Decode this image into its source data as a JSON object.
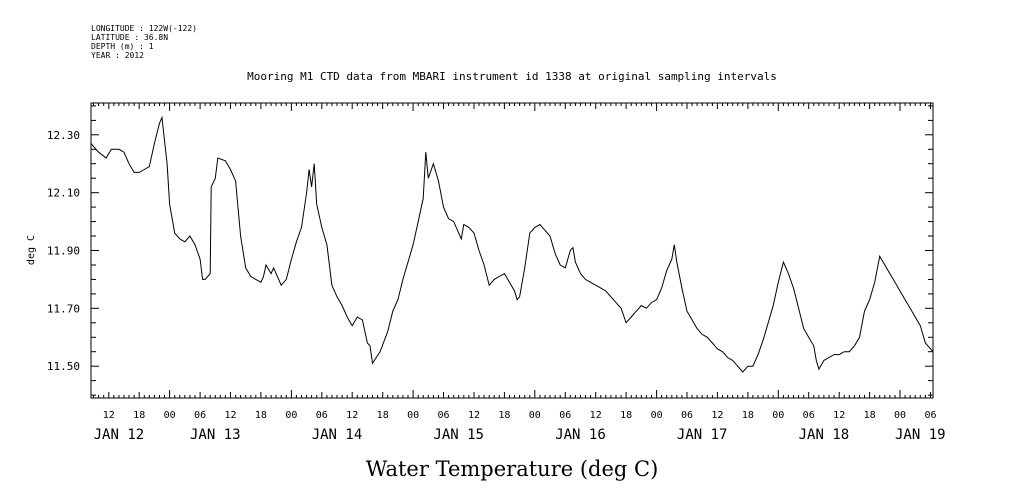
{
  "meta_lines": [
    "LONGITUDE : 122W(-122)",
    "LATITUDE : 36.8N",
    "DEPTH (m) : 1",
    "YEAR : 2012"
  ],
  "chart_data": {
    "type": "line",
    "title": "Mooring M1 CTD data from MBARI instrument id 1338 at original sampling intervals",
    "xlabel": "Water Temperature (deg C)",
    "ylabel": "deg C",
    "x_units": "hours since JAN 12 00:00 (2012)",
    "xlim": [
      8.5,
      174.5
    ],
    "ylim": [
      11.39,
      12.41
    ],
    "yticks": [
      11.5,
      11.7,
      11.9,
      12.1,
      12.3
    ],
    "ytick_labels": [
      "11.50",
      "11.70",
      "11.90",
      "12.10",
      "12.30"
    ],
    "x_hour_ticks": [
      {
        "h": 12,
        "label": "12"
      },
      {
        "h": 18,
        "label": "18"
      },
      {
        "h": 24,
        "label": "00"
      },
      {
        "h": 30,
        "label": "06"
      },
      {
        "h": 36,
        "label": "12"
      },
      {
        "h": 42,
        "label": "18"
      },
      {
        "h": 48,
        "label": "00"
      },
      {
        "h": 54,
        "label": "06"
      },
      {
        "h": 60,
        "label": "12"
      },
      {
        "h": 66,
        "label": "18"
      },
      {
        "h": 72,
        "label": "00"
      },
      {
        "h": 78,
        "label": "06"
      },
      {
        "h": 84,
        "label": "12"
      },
      {
        "h": 90,
        "label": "18"
      },
      {
        "h": 96,
        "label": "00"
      },
      {
        "h": 102,
        "label": "06"
      },
      {
        "h": 108,
        "label": "12"
      },
      {
        "h": 114,
        "label": "18"
      },
      {
        "h": 120,
        "label": "00"
      },
      {
        "h": 126,
        "label": "06"
      },
      {
        "h": 132,
        "label": "12"
      },
      {
        "h": 138,
        "label": "18"
      },
      {
        "h": 144,
        "label": "00"
      },
      {
        "h": 150,
        "label": "06"
      },
      {
        "h": 156,
        "label": "12"
      },
      {
        "h": 162,
        "label": "18"
      },
      {
        "h": 168,
        "label": "00"
      },
      {
        "h": 174,
        "label": "06"
      }
    ],
    "x_day_labels": [
      {
        "h": 14,
        "label": "JAN 12"
      },
      {
        "h": 33,
        "label": "JAN 13"
      },
      {
        "h": 57,
        "label": "JAN 14"
      },
      {
        "h": 81,
        "label": "JAN 15"
      },
      {
        "h": 105,
        "label": "JAN 16"
      },
      {
        "h": 129,
        "label": "JAN 17"
      },
      {
        "h": 153,
        "label": "JAN 18"
      },
      {
        "h": 172,
        "label": "JAN 19"
      }
    ],
    "series": [
      {
        "points": [
          [
            8.5,
            12.27
          ],
          [
            10.0,
            12.24
          ],
          [
            11.5,
            12.22
          ],
          [
            12.5,
            12.25
          ],
          [
            14.0,
            12.25
          ],
          [
            15.0,
            12.24
          ],
          [
            16.0,
            12.2
          ],
          [
            17.0,
            12.17
          ],
          [
            18.0,
            12.17
          ],
          [
            19.0,
            12.18
          ],
          [
            20.0,
            12.19
          ],
          [
            21.0,
            12.27
          ],
          [
            22.0,
            12.34
          ],
          [
            22.5,
            12.36
          ],
          [
            23.0,
            12.28
          ],
          [
            23.5,
            12.2
          ],
          [
            24.0,
            12.06
          ],
          [
            25.0,
            11.96
          ],
          [
            26.0,
            11.94
          ],
          [
            27.0,
            11.93
          ],
          [
            28.0,
            11.95
          ],
          [
            29.0,
            11.92
          ],
          [
            30.0,
            11.87
          ],
          [
            30.5,
            11.8
          ],
          [
            31.0,
            11.8
          ],
          [
            31.5,
            11.81
          ],
          [
            32.0,
            11.82
          ],
          [
            32.2,
            12.12
          ],
          [
            33.0,
            12.15
          ],
          [
            33.5,
            12.22
          ],
          [
            35.0,
            12.21
          ],
          [
            36.0,
            12.18
          ],
          [
            37.0,
            12.14
          ],
          [
            38.0,
            11.95
          ],
          [
            39.0,
            11.84
          ],
          [
            40.0,
            11.81
          ],
          [
            41.0,
            11.8
          ],
          [
            42.0,
            11.79
          ],
          [
            42.5,
            11.81
          ],
          [
            43.0,
            11.85
          ],
          [
            44.0,
            11.82
          ],
          [
            44.5,
            11.84
          ],
          [
            45.0,
            11.82
          ],
          [
            46.0,
            11.78
          ],
          [
            47.0,
            11.8
          ],
          [
            48.0,
            11.87
          ],
          [
            49.0,
            11.93
          ],
          [
            50.0,
            11.98
          ],
          [
            51.0,
            12.1
          ],
          [
            51.5,
            12.18
          ],
          [
            52.0,
            12.12
          ],
          [
            52.5,
            12.2
          ],
          [
            53.0,
            12.06
          ],
          [
            54.0,
            11.98
          ],
          [
            55.0,
            11.92
          ],
          [
            56.0,
            11.78
          ],
          [
            57.0,
            11.74
          ],
          [
            58.0,
            11.71
          ],
          [
            59.0,
            11.67
          ],
          [
            60.0,
            11.64
          ],
          [
            61.0,
            11.67
          ],
          [
            62.0,
            11.66
          ],
          [
            63.0,
            11.58
          ],
          [
            63.5,
            11.57
          ],
          [
            64.0,
            11.51
          ],
          [
            65.5,
            11.55
          ],
          [
            67.0,
            11.62
          ],
          [
            68.0,
            11.69
          ],
          [
            69.0,
            11.73
          ],
          [
            70.0,
            11.8
          ],
          [
            71.0,
            11.86
          ],
          [
            72.0,
            11.92
          ],
          [
            73.0,
            12.0
          ],
          [
            74.0,
            12.08
          ],
          [
            74.5,
            12.24
          ],
          [
            75.0,
            12.15
          ],
          [
            76.0,
            12.2
          ],
          [
            77.0,
            12.14
          ],
          [
            78.0,
            12.05
          ],
          [
            79.0,
            12.01
          ],
          [
            80.0,
            12.0
          ],
          [
            81.0,
            11.96
          ],
          [
            81.5,
            11.94
          ],
          [
            82.0,
            11.99
          ],
          [
            83.0,
            11.98
          ],
          [
            84.0,
            11.96
          ],
          [
            85.0,
            11.9
          ],
          [
            86.0,
            11.85
          ],
          [
            87.0,
            11.78
          ],
          [
            88.0,
            11.8
          ],
          [
            89.0,
            11.81
          ],
          [
            90.0,
            11.82
          ],
          [
            91.0,
            11.79
          ],
          [
            92.0,
            11.76
          ],
          [
            92.5,
            11.73
          ],
          [
            93.0,
            11.74
          ],
          [
            94.0,
            11.84
          ],
          [
            95.0,
            11.96
          ],
          [
            96.0,
            11.98
          ],
          [
            97.0,
            11.99
          ],
          [
            98.0,
            11.97
          ],
          [
            99.0,
            11.95
          ],
          [
            100.0,
            11.89
          ],
          [
            101.0,
            11.85
          ],
          [
            102.0,
            11.84
          ],
          [
            103.0,
            11.9
          ],
          [
            103.5,
            11.91
          ],
          [
            104.0,
            11.86
          ],
          [
            105.0,
            11.82
          ],
          [
            106.0,
            11.8
          ],
          [
            107.0,
            11.79
          ],
          [
            108.0,
            11.78
          ],
          [
            109.0,
            11.77
          ],
          [
            110.0,
            11.76
          ],
          [
            111.0,
            11.74
          ],
          [
            112.0,
            11.72
          ],
          [
            113.0,
            11.7
          ],
          [
            114.0,
            11.65
          ],
          [
            115.0,
            11.67
          ],
          [
            116.0,
            11.69
          ],
          [
            117.0,
            11.71
          ],
          [
            118.0,
            11.7
          ],
          [
            119.0,
            11.72
          ],
          [
            120.0,
            11.73
          ],
          [
            121.0,
            11.77
          ],
          [
            122.0,
            11.83
          ],
          [
            123.0,
            11.87
          ],
          [
            123.5,
            11.92
          ],
          [
            124.0,
            11.86
          ],
          [
            125.0,
            11.77
          ],
          [
            126.0,
            11.69
          ],
          [
            127.0,
            11.66
          ],
          [
            128.0,
            11.63
          ],
          [
            129.0,
            11.61
          ],
          [
            130.0,
            11.6
          ],
          [
            131.0,
            11.58
          ],
          [
            132.0,
            11.56
          ],
          [
            133.0,
            11.55
          ],
          [
            134.0,
            11.53
          ],
          [
            135.0,
            11.52
          ],
          [
            136.0,
            11.5
          ],
          [
            137.0,
            11.48
          ],
          [
            138.0,
            11.5
          ],
          [
            139.0,
            11.5
          ],
          [
            140.0,
            11.54
          ],
          [
            141.0,
            11.59
          ],
          [
            142.0,
            11.65
          ],
          [
            143.0,
            11.71
          ],
          [
            144.0,
            11.79
          ],
          [
            145.0,
            11.86
          ],
          [
            146.0,
            11.82
          ],
          [
            147.0,
            11.77
          ],
          [
            148.0,
            11.7
          ],
          [
            149.0,
            11.63
          ],
          [
            150.0,
            11.6
          ],
          [
            151.0,
            11.57
          ],
          [
            151.5,
            11.52
          ],
          [
            152.0,
            11.49
          ],
          [
            153.0,
            11.52
          ],
          [
            154.0,
            11.53
          ],
          [
            155.0,
            11.54
          ],
          [
            156.0,
            11.54
          ],
          [
            157.0,
            11.55
          ],
          [
            158.0,
            11.55
          ],
          [
            159.0,
            11.57
          ],
          [
            160.0,
            11.6
          ],
          [
            161.0,
            11.69
          ],
          [
            162.0,
            11.73
          ],
          [
            163.0,
            11.79
          ],
          [
            164.0,
            11.88
          ],
          [
            165.0,
            11.85
          ],
          [
            166.0,
            11.82
          ],
          [
            167.0,
            11.79
          ],
          [
            168.0,
            11.76
          ],
          [
            169.0,
            11.73
          ],
          [
            170.0,
            11.7
          ],
          [
            171.0,
            11.67
          ],
          [
            172.0,
            11.64
          ],
          [
            173.0,
            11.58
          ],
          [
            174.0,
            11.56
          ],
          [
            174.5,
            11.55
          ]
        ]
      }
    ]
  }
}
